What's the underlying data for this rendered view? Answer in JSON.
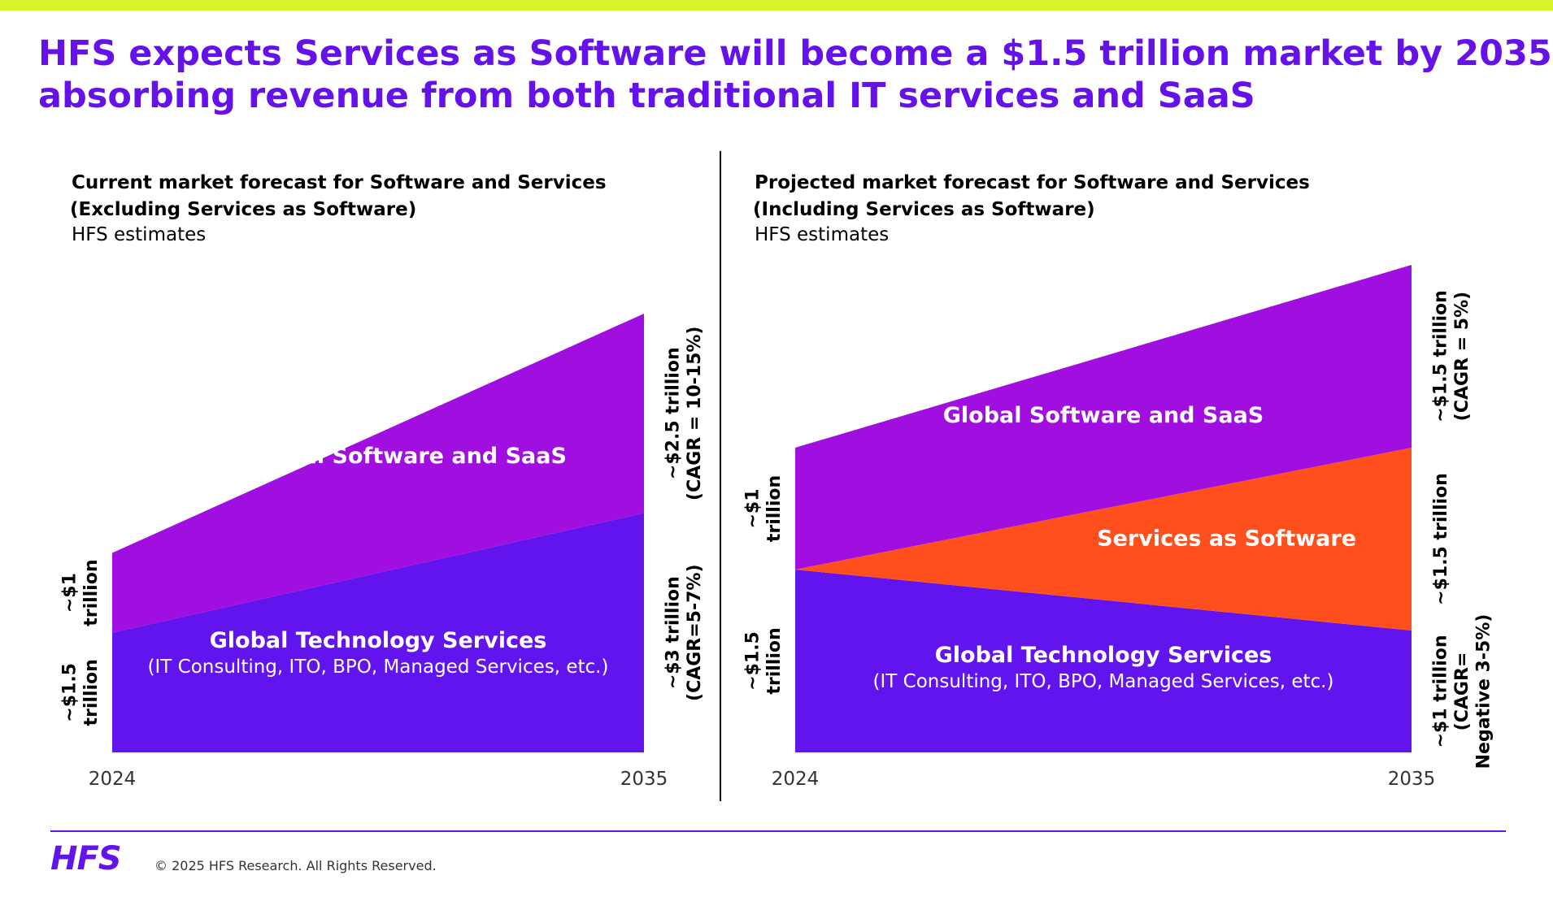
{
  "colors": {
    "accent_bar": "#d7f52a",
    "headline": "#6512ea",
    "services": "#6114ee",
    "saas": "#a00ee0",
    "sas": "#ff4f1d",
    "footer_line": "#6114ee"
  },
  "headline": {
    "line1": "HFS expects Services as Software will become a $1.5 trillion market by 2035,",
    "line2": "absorbing revenue from both traditional IT services and SaaS"
  },
  "chart_data": [
    {
      "type": "area",
      "title": "Current market forecast for Software and Services",
      "subtitle": "(Excluding Services as Software)",
      "source": "HFS estimates",
      "x": [
        "2024",
        "2035"
      ],
      "series": [
        {
          "name": "Global Technology Services",
          "sublabel": "(IT Consulting, ITO, BPO, Managed Services, etc.)",
          "values": [
            1.5,
            3
          ],
          "start_label": [
            "~$1.5",
            "trillion"
          ],
          "end_label": [
            "~$3 trillion",
            "(CAGR=5-7%)"
          ]
        },
        {
          "name": "Global Software and SaaS",
          "values": [
            1,
            2.5
          ],
          "start_label": [
            "~$1",
            "trillion"
          ],
          "end_label": [
            "~$2.5 trillion",
            "(CAGR = 10-15%)"
          ]
        }
      ]
    },
    {
      "type": "area",
      "title": "Projected market forecast for Software and Services",
      "subtitle": "(Including Services as Software)",
      "source": "HFS estimates",
      "x": [
        "2024",
        "2035"
      ],
      "series": [
        {
          "name": "Global Technology Services",
          "sublabel": "(IT Consulting, ITO, BPO, Managed Services, etc.)",
          "values": [
            1.5,
            1
          ],
          "start_label": [
            "~$1.5",
            "trillion"
          ],
          "end_label": [
            "~$1 trillion",
            "(CAGR=",
            "Negative 3-5%)"
          ]
        },
        {
          "name": "Services as Software",
          "values": [
            0,
            1.5
          ],
          "end_label": [
            "~$1.5 trillion"
          ]
        },
        {
          "name": "Global Software and SaaS",
          "values": [
            1,
            1.5
          ],
          "start_label": [
            "~$1",
            "trillion"
          ],
          "end_label": [
            "~$1.5 trillion",
            "(CAGR = 5%)"
          ]
        }
      ]
    }
  ],
  "footer": {
    "logo": "HFS",
    "copyright": "© 2025 HFS Research. All Rights Reserved."
  }
}
